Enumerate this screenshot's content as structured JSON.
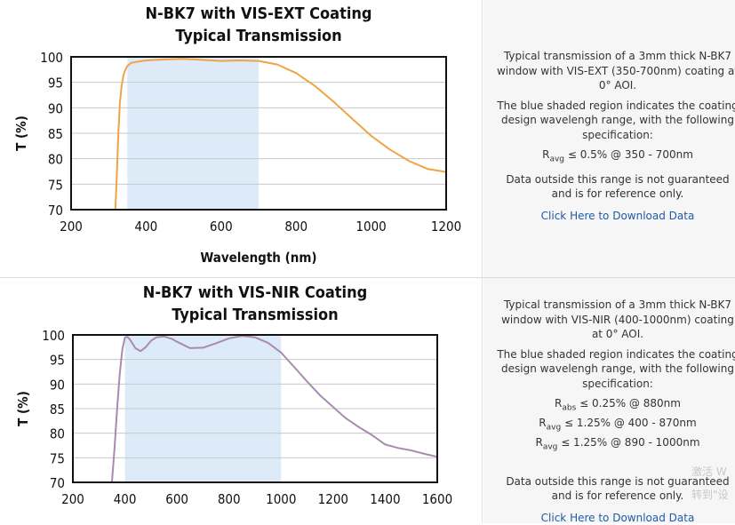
{
  "panels": [
    {
      "chart_data": {
        "type": "line",
        "title": "N-BK7 with VIS-EXT Coating",
        "subtitle": "Typical Transmission",
        "xlabel": "Wavelength (nm)",
        "ylabel": "T (%)",
        "xlim": [
          200,
          1200
        ],
        "ylim": [
          70,
          100
        ],
        "x_ticks": [
          200,
          400,
          600,
          800,
          1000,
          1200
        ],
        "y_ticks": [
          70,
          75,
          80,
          85,
          90,
          95,
          100
        ],
        "grid": true,
        "shaded_region": [
          350,
          700
        ],
        "series": [
          {
            "color": "#f0a445",
            "x": [
              318,
              322,
              326,
              330,
              335,
              340,
              345,
              350,
              360,
              380,
              400,
              450,
              500,
              550,
              600,
              650,
              700,
              750,
              800,
              850,
              900,
              950,
              1000,
              1050,
              1100,
              1150,
              1200
            ],
            "y": [
              70,
              77,
              85,
              91,
              94.5,
              96.5,
              97.5,
              98.2,
              98.8,
              99.1,
              99.3,
              99.5,
              99.6,
              99.4,
              99.2,
              99.3,
              99.2,
              98.5,
              96.8,
              94.3,
              91.2,
              87.8,
              84.5,
              81.8,
              79.6,
              78.0,
              77.4
            ]
          }
        ]
      },
      "colors": {
        "shade": "#ddeaf7",
        "grid": "#c9c9c9",
        "axis": "#111111"
      },
      "description": {
        "p1": "Typical transmission of a 3mm thick N-BK7 window with VIS-EXT (350-700nm) coating at 0° AOI.",
        "p2": "The blue shaded region indicates the coating design wavelengh range, with the following specification:",
        "spec": [
          {
            "base": "R",
            "sub": "avg",
            "text": " ≤ 0.5% @ 350 - 700nm"
          }
        ],
        "p3": "Data outside this range is not guaranteed and is for reference only.",
        "link": "Click Here to Download Data"
      }
    },
    {
      "chart_data": {
        "type": "line",
        "title": "N-BK7 with VIS-NIR Coating",
        "subtitle": "Typical Transmission",
        "xlabel": "Wavelength (nm)",
        "ylabel": "T (%)",
        "xlim": [
          200,
          1600
        ],
        "ylim": [
          70,
          100
        ],
        "x_ticks": [
          200,
          400,
          600,
          800,
          1000,
          1200,
          1400,
          1600
        ],
        "y_ticks": [
          70,
          75,
          80,
          85,
          90,
          95,
          100
        ],
        "grid": true,
        "shaded_region": [
          400,
          1000
        ],
        "series": [
          {
            "color": "#a98ab0",
            "x": [
              350,
              360,
              370,
              380,
              390,
              400,
              410,
              420,
              440,
              460,
              480,
              500,
              520,
              550,
              580,
              600,
              650,
              700,
              750,
              800,
              850,
              900,
              950,
              1000,
              1050,
              1100,
              1150,
              1200,
              1250,
              1300,
              1350,
              1400,
              1450,
              1500,
              1550,
              1600
            ],
            "y": [
              70,
              77,
              85,
              92,
              97,
              99.5,
              99.6,
              99.0,
              97.3,
              96.7,
              97.5,
              98.8,
              99.5,
              99.7,
              99.2,
              98.6,
              97.3,
              97.4,
              98.3,
              99.3,
              99.8,
              99.5,
              98.4,
              96.4,
              93.5,
              90.5,
              87.7,
              85.3,
              83.0,
              81.2,
              79.6,
              77.7,
              77.0,
              76.5,
              75.8,
              75.2
            ]
          }
        ]
      },
      "colors": {
        "shade": "#ddeaf7",
        "grid": "#c9c9c9",
        "axis": "#111111"
      },
      "description": {
        "p1": "Typical transmission of a 3mm thick N-BK7 window with VIS-NIR (400-1000nm) coating at 0° AOI.",
        "p2": "The blue shaded region indicates the coating design wavelengh range, with the following specification:",
        "spec": [
          {
            "base": "R",
            "sub": "abs",
            "text": " ≤ 0.25% @ 880nm"
          },
          {
            "base": "R",
            "sub": "avg",
            "text": " ≤ 1.25% @ 400 - 870nm"
          },
          {
            "base": "R",
            "sub": "avg",
            "text": " ≤ 1.25% @ 890 - 1000nm"
          }
        ],
        "p3": "Data outside this range is not guaranteed and is for reference only.",
        "link": "Click Here to Download Data"
      }
    }
  ],
  "watermark": {
    "line1": "激活 W",
    "line2": "转到\"设"
  }
}
